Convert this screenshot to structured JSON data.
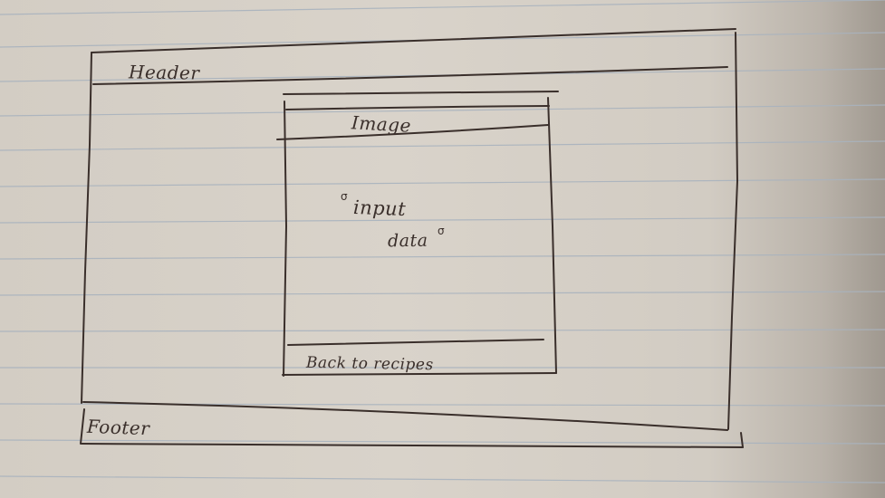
{
  "sketch": {
    "header_label": "Header",
    "image_label": "Image",
    "input_label": "input",
    "data_label": "data",
    "back_link_label": "Back to recipes",
    "footer_label": "Footer",
    "markers": [
      "σ",
      "σ"
    ]
  },
  "colors": {
    "ink": "#3a2f2b",
    "paper": "#d6d0c7",
    "rule": "#a9b3be"
  }
}
